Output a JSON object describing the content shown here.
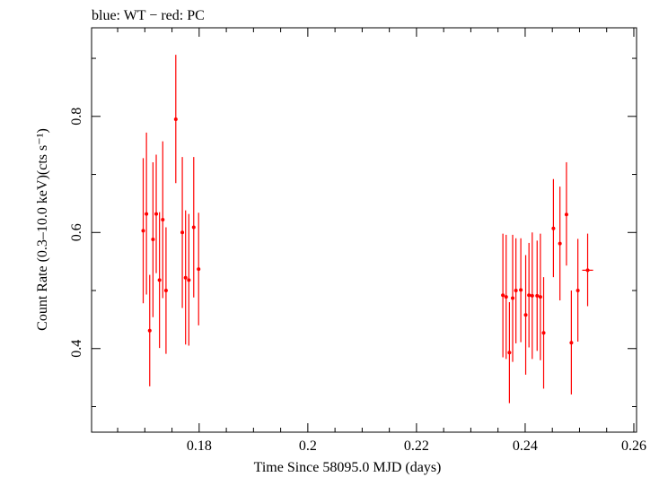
{
  "header": {
    "title": "blue: WT − red: PC"
  },
  "chart_data": {
    "type": "scatter",
    "title": "blue: WT − red: PC",
    "xlabel": "Time Since 58095.0 MJD (days)",
    "ylabel": "Count Rate (0.3–10.0 keV)(cts s⁻¹)",
    "xlim": [
      0.1602,
      0.2605
    ],
    "ylim": [
      0.256,
      0.9526
    ],
    "x_ticks": [
      0.18,
      0.2,
      0.22,
      0.24,
      0.26
    ],
    "x_tick_labels": [
      "0.18",
      "0.2",
      "0.22",
      "0.24",
      "0.26"
    ],
    "y_ticks": [
      0.4,
      0.6,
      0.8
    ],
    "y_tick_labels": [
      "0.4",
      "0.6",
      "0.8"
    ],
    "grid": false,
    "colors": {
      "PC": "#ff0000",
      "axis": "#000000"
    },
    "series": [
      {
        "color": "#ff0000",
        "points": [
          {
            "x": 0.1697,
            "y": 0.603,
            "xerr": 0.0003,
            "ylo": 0.478,
            "yhi": 0.728
          },
          {
            "x": 0.1703,
            "y": 0.632,
            "xerr": 0.0003,
            "ylo": 0.493,
            "yhi": 0.772
          },
          {
            "x": 0.1709,
            "y": 0.431,
            "xerr": 0.0003,
            "ylo": 0.335,
            "yhi": 0.527
          },
          {
            "x": 0.1715,
            "y": 0.588,
            "xerr": 0.0003,
            "ylo": 0.454,
            "yhi": 0.721
          },
          {
            "x": 0.1721,
            "y": 0.632,
            "xerr": 0.0003,
            "ylo": 0.53,
            "yhi": 0.734
          },
          {
            "x": 0.1727,
            "y": 0.518,
            "xerr": 0.0003,
            "ylo": 0.401,
            "yhi": 0.635
          },
          {
            "x": 0.1733,
            "y": 0.622,
            "xerr": 0.0003,
            "ylo": 0.487,
            "yhi": 0.757
          },
          {
            "x": 0.1739,
            "y": 0.5,
            "xerr": 0.0003,
            "ylo": 0.391,
            "yhi": 0.609
          },
          {
            "x": 0.1757,
            "y": 0.795,
            "xerr": 0.0003,
            "ylo": 0.685,
            "yhi": 0.906
          },
          {
            "x": 0.1769,
            "y": 0.6,
            "xerr": 0.0003,
            "ylo": 0.47,
            "yhi": 0.73
          },
          {
            "x": 0.1775,
            "y": 0.522,
            "xerr": 0.0003,
            "ylo": 0.407,
            "yhi": 0.638
          },
          {
            "x": 0.1781,
            "y": 0.518,
            "xerr": 0.0003,
            "ylo": 0.405,
            "yhi": 0.632
          },
          {
            "x": 0.179,
            "y": 0.609,
            "xerr": 0.0003,
            "ylo": 0.488,
            "yhi": 0.73
          },
          {
            "x": 0.1799,
            "y": 0.537,
            "xerr": 0.0003,
            "ylo": 0.44,
            "yhi": 0.634
          },
          {
            "x": 0.2359,
            "y": 0.492,
            "xerr": 0.0003,
            "ylo": 0.385,
            "yhi": 0.598
          },
          {
            "x": 0.2365,
            "y": 0.489,
            "xerr": 0.0003,
            "ylo": 0.382,
            "yhi": 0.596
          },
          {
            "x": 0.2371,
            "y": 0.393,
            "xerr": 0.0003,
            "ylo": 0.306,
            "yhi": 0.48
          },
          {
            "x": 0.2377,
            "y": 0.487,
            "xerr": 0.0003,
            "ylo": 0.377,
            "yhi": 0.596
          },
          {
            "x": 0.2383,
            "y": 0.5,
            "xerr": 0.0003,
            "ylo": 0.409,
            "yhi": 0.59
          },
          {
            "x": 0.2392,
            "y": 0.501,
            "xerr": 0.0003,
            "ylo": 0.411,
            "yhi": 0.59
          },
          {
            "x": 0.2401,
            "y": 0.458,
            "xerr": 0.0003,
            "ylo": 0.355,
            "yhi": 0.561
          },
          {
            "x": 0.2407,
            "y": 0.492,
            "xerr": 0.0003,
            "ylo": 0.402,
            "yhi": 0.582
          },
          {
            "x": 0.2413,
            "y": 0.491,
            "xerr": 0.0003,
            "ylo": 0.382,
            "yhi": 0.6
          },
          {
            "x": 0.2422,
            "y": 0.491,
            "xerr": 0.0003,
            "ylo": 0.396,
            "yhi": 0.586
          },
          {
            "x": 0.2428,
            "y": 0.489,
            "xerr": 0.0003,
            "ylo": 0.38,
            "yhi": 0.598
          },
          {
            "x": 0.2434,
            "y": 0.427,
            "xerr": 0.0003,
            "ylo": 0.331,
            "yhi": 0.523
          },
          {
            "x": 0.2452,
            "y": 0.607,
            "xerr": 0.0003,
            "ylo": 0.523,
            "yhi": 0.692
          },
          {
            "x": 0.2464,
            "y": 0.581,
            "xerr": 0.0003,
            "ylo": 0.483,
            "yhi": 0.679
          },
          {
            "x": 0.2476,
            "y": 0.631,
            "xerr": 0.0003,
            "ylo": 0.543,
            "yhi": 0.721
          },
          {
            "x": 0.2485,
            "y": 0.41,
            "xerr": 0.0003,
            "ylo": 0.321,
            "yhi": 0.5
          },
          {
            "x": 0.2497,
            "y": 0.5,
            "xerr": 0.0003,
            "ylo": 0.412,
            "yhi": 0.589
          },
          {
            "x": 0.2515,
            "y": 0.535,
            "xerr": 0.001,
            "ylo": 0.473,
            "yhi": 0.598
          }
        ]
      }
    ]
  }
}
